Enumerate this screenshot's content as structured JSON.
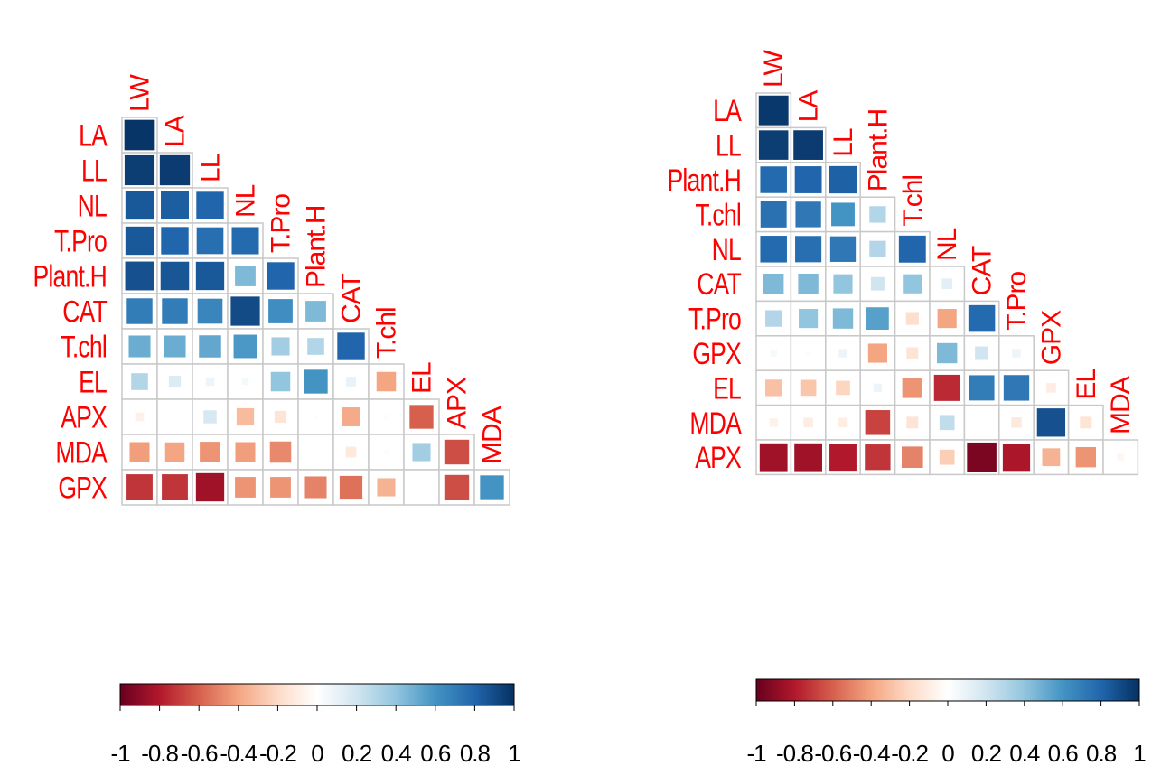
{
  "colorbar": {
    "ticks": [
      "-1",
      "-0.8",
      "-0.6",
      "-0.4",
      "-0.2",
      "0",
      "0.2",
      "0.4",
      "0.6",
      "0.8",
      "1"
    ],
    "range": [
      -1,
      1
    ],
    "colors": [
      "#67001f",
      "#b2182b",
      "#d6604d",
      "#f4a582",
      "#fddbc7",
      "#ffffff",
      "#d1e5f0",
      "#92c5de",
      "#4393c3",
      "#2166ac",
      "#053061"
    ]
  },
  "label_color": "#ff0000",
  "chart_data": [
    {
      "type": "heatmap",
      "variables": [
        "LW",
        "LA",
        "LL",
        "NL",
        "T.Pro",
        "Plant.H",
        "CAT",
        "T.chl",
        "EL",
        "APX",
        "MDA",
        "GPX"
      ],
      "row_labels": [
        "LA",
        "LL",
        "NL",
        "T.Pro",
        "Plant.H",
        "CAT",
        "T.chl",
        "EL",
        "APX",
        "MDA",
        "GPX"
      ],
      "diag_labels": [
        "LW",
        "LA",
        "LL",
        "NL",
        "T.Pro",
        "Plant.H",
        "CAT",
        "T.chl",
        "EL",
        "APX",
        "MDA"
      ],
      "values": [
        [
          0.98
        ],
        [
          0.95,
          0.96
        ],
        [
          0.85,
          0.83,
          0.8
        ],
        [
          0.85,
          0.8,
          0.76,
          0.78
        ],
        [
          0.88,
          0.86,
          0.85,
          0.45,
          0.8
        ],
        [
          0.7,
          0.7,
          0.66,
          0.9,
          0.62,
          0.45
        ],
        [
          0.5,
          0.5,
          0.52,
          0.58,
          0.35,
          0.3,
          0.8
        ],
        [
          0.3,
          0.15,
          0.08,
          0.05,
          0.4,
          0.6,
          0.1,
          -0.4
        ],
        [
          -0.08,
          0.0,
          0.18,
          -0.32,
          -0.15,
          0.02,
          -0.38,
          0.02,
          -0.6
        ],
        [
          -0.42,
          -0.4,
          -0.45,
          -0.42,
          -0.48,
          0.0,
          -0.12,
          0.02,
          0.35,
          -0.65
        ],
        [
          -0.72,
          -0.72,
          -0.85,
          -0.45,
          -0.45,
          -0.5,
          -0.55,
          -0.35,
          0.0,
          -0.65,
          0.6
        ]
      ]
    },
    {
      "type": "heatmap",
      "variables": [
        "LW",
        "LA",
        "LL",
        "Plant.H",
        "T.chl",
        "NL",
        "CAT",
        "T.Pro",
        "GPX",
        "EL",
        "MDA",
        "APX"
      ],
      "row_labels": [
        "LA",
        "LL",
        "Plant.H",
        "T.chl",
        "NL",
        "CAT",
        "T.Pro",
        "GPX",
        "EL",
        "MDA",
        "APX"
      ],
      "diag_labels": [
        "LW",
        "LA",
        "LL",
        "Plant.H",
        "T.chl",
        "NL",
        "CAT",
        "T.Pro",
        "GPX",
        "EL",
        "MDA"
      ],
      "values": [
        [
          0.97
        ],
        [
          0.95,
          0.96
        ],
        [
          0.78,
          0.8,
          0.82
        ],
        [
          0.75,
          0.72,
          0.6,
          0.3
        ],
        [
          0.78,
          0.76,
          0.72,
          0.3,
          0.8
        ],
        [
          0.45,
          0.45,
          0.4,
          0.2,
          0.4,
          0.12
        ],
        [
          0.3,
          0.4,
          0.45,
          0.55,
          -0.18,
          -0.4,
          0.78
        ],
        [
          0.05,
          0.02,
          0.08,
          -0.4,
          -0.15,
          0.45,
          0.2,
          0.08
        ],
        [
          -0.3,
          -0.28,
          -0.22,
          0.08,
          -0.45,
          -0.75,
          0.7,
          0.72,
          -0.1
        ],
        [
          -0.08,
          -0.1,
          -0.1,
          -0.68,
          -0.15,
          0.25,
          0.0,
          -0.12,
          0.88,
          -0.15
        ],
        [
          -0.85,
          -0.85,
          -0.8,
          -0.72,
          -0.5,
          -0.25,
          -0.95,
          -0.82,
          -0.35,
          -0.45,
          -0.05
        ]
      ]
    }
  ]
}
